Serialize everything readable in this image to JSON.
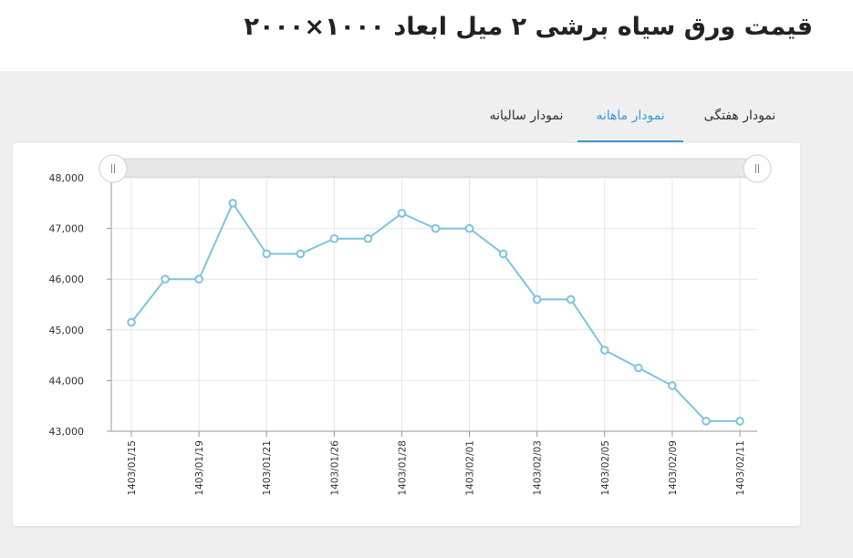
{
  "header": {
    "title": "قیمت ورق سیاه برشی ۲ میل ابعاد ۱۰۰۰×۲۰۰۰"
  },
  "tabs": [
    {
      "label": "نمودار هفتگی",
      "active": false
    },
    {
      "label": "نمودار ماهانه",
      "active": true
    },
    {
      "label": "نمودار سالیانه",
      "active": false
    }
  ],
  "colors": {
    "accent": "#3a9ad9",
    "line": "#7cc4e0"
  },
  "icons": {
    "scroll_handle": "grip-handle-icon"
  },
  "chart_data": {
    "type": "line",
    "title": "",
    "xlabel": "",
    "ylabel": "",
    "ylim": [
      43000,
      48000
    ],
    "yticks": [
      "43,000",
      "44,000",
      "45,000",
      "46,000",
      "47,000",
      "48,000"
    ],
    "ytick_values": [
      43000,
      44000,
      45000,
      46000,
      47000,
      48000
    ],
    "xtick_labels": [
      "1403/01/15",
      "1403/01/19",
      "1403/01/21",
      "1403/01/26",
      "1403/01/28",
      "1403/02/01",
      "1403/02/03",
      "1403/02/05",
      "1403/02/09",
      "1403/02/11"
    ],
    "series": [
      {
        "values": [
          45150,
          46000,
          46000,
          47500,
          46500,
          46500,
          46800,
          46800,
          47300,
          47000,
          47000,
          46500,
          45600,
          45600,
          44600,
          44250,
          43900,
          43200,
          43200
        ]
      }
    ],
    "grid": true
  }
}
